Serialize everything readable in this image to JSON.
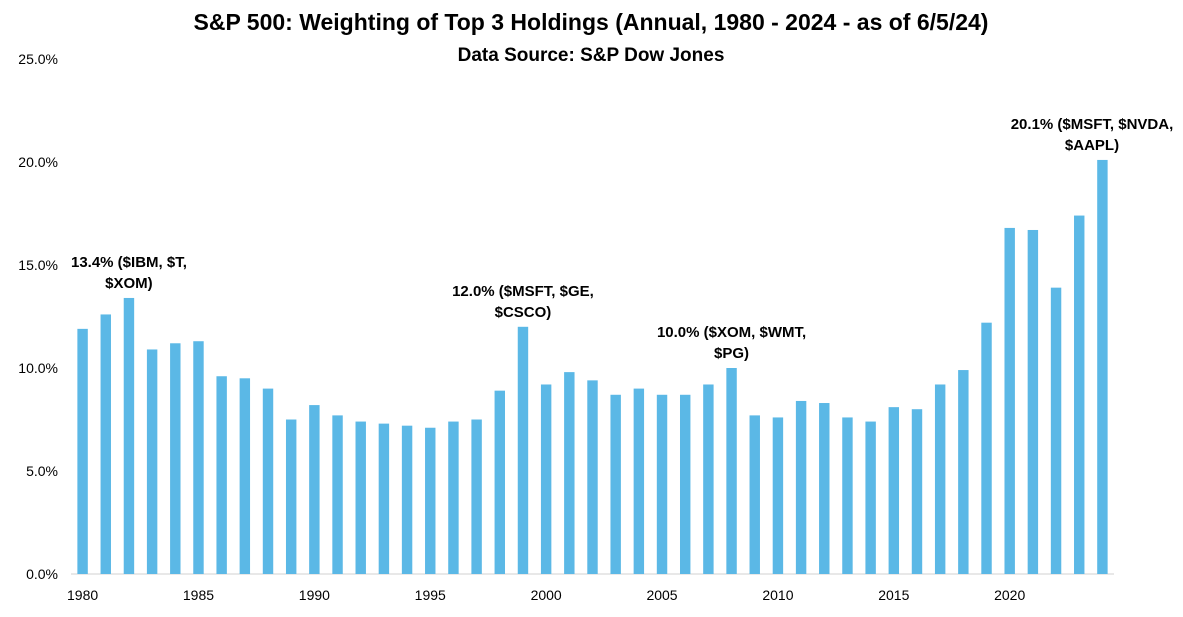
{
  "chart_data": {
    "type": "bar",
    "title": "S&P 500: Weighting of Top 3 Holdings (Annual, 1980 - 2024 - as of 6/5/24)",
    "subtitle": "Data Source: S&P Dow Jones",
    "xlabel": "",
    "ylabel": "",
    "ylim": [
      0,
      25
    ],
    "yticks": [
      "0.0%",
      "5.0%",
      "10.0%",
      "15.0%",
      "20.0%",
      "25.0%"
    ],
    "xticks": [
      "1980",
      "1985",
      "1990",
      "1995",
      "2000",
      "2005",
      "2010",
      "2015",
      "2020"
    ],
    "grid": false,
    "bar_color": "#5BB8E6",
    "categories": [
      1980,
      1981,
      1982,
      1983,
      1984,
      1985,
      1986,
      1987,
      1988,
      1989,
      1990,
      1991,
      1992,
      1993,
      1994,
      1995,
      1996,
      1997,
      1998,
      1999,
      2000,
      2001,
      2002,
      2003,
      2004,
      2005,
      2006,
      2007,
      2008,
      2009,
      2010,
      2011,
      2012,
      2013,
      2014,
      2015,
      2016,
      2017,
      2018,
      2019,
      2020,
      2021,
      2022,
      2023,
      2024
    ],
    "values": [
      11.9,
      12.6,
      13.4,
      10.9,
      11.2,
      11.3,
      9.6,
      9.5,
      9.0,
      7.5,
      8.2,
      7.7,
      7.4,
      7.3,
      7.2,
      7.1,
      7.4,
      7.5,
      8.9,
      12.0,
      9.2,
      9.8,
      9.4,
      8.7,
      9.0,
      8.7,
      8.7,
      9.2,
      10.0,
      7.7,
      7.6,
      8.4,
      8.3,
      7.6,
      7.4,
      8.1,
      8.0,
      9.2,
      9.9,
      12.2,
      16.8,
      16.7,
      13.9,
      17.4,
      20.1
    ],
    "annotations": [
      {
        "year": 1982,
        "lines": [
          "13.4% ($IBM, $T,",
          "$XOM)"
        ]
      },
      {
        "year": 1999,
        "lines": [
          "12.0% ($MSFT, $GE,",
          "$CSCO)"
        ]
      },
      {
        "year": 2008,
        "lines": [
          "10.0% ($XOM, $WMT,",
          "$PG)"
        ]
      },
      {
        "year": 2024,
        "lines": [
          "20.1% ($MSFT, $NVDA,",
          "$AAPL)"
        ]
      }
    ]
  }
}
